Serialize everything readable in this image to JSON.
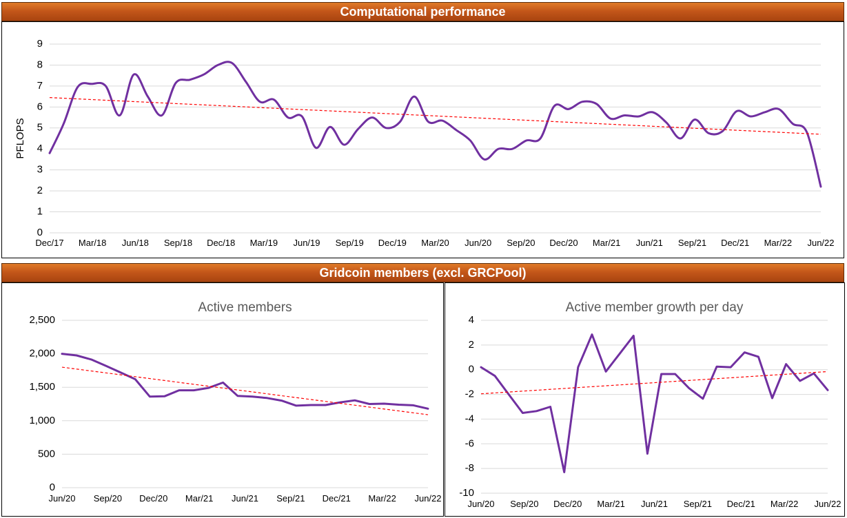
{
  "banners": {
    "top": "Computational performance",
    "bottom": "Gridcoin members (excl. GRCPool)"
  },
  "colors": {
    "series": "#7030a0",
    "trend": "#ff0000",
    "grid": "#d9d9d9",
    "banner": "#c55a11"
  },
  "chart_data": [
    {
      "type": "line",
      "title": "",
      "ylabel": "PFLOPS",
      "xlabel": "",
      "ylim": [
        0,
        9
      ],
      "yticks": [
        "0",
        "1",
        "2",
        "3",
        "4",
        "5",
        "6",
        "7",
        "8",
        "9"
      ],
      "x_tick_labels": [
        "Dec/17",
        "Mar/18",
        "Jun/18",
        "Sep/18",
        "Dec/18",
        "Mar/19",
        "Jun/19",
        "Sep/19",
        "Dec/19",
        "Mar/20",
        "Jun/20",
        "Sep/20",
        "Dec/20",
        "Mar/21",
        "Jun/21",
        "Sep/21",
        "Dec/21",
        "Mar/22",
        "Jun/22"
      ],
      "smooth": true,
      "grid": true,
      "series": [
        {
          "values": [
            3.8,
            5.2,
            6.95,
            7.1,
            7.0,
            5.6,
            7.55,
            6.5,
            5.6,
            7.15,
            7.3,
            7.55,
            8.0,
            8.1,
            7.2,
            6.25,
            6.35,
            5.5,
            5.55,
            4.05,
            5.05,
            4.2,
            4.95,
            5.5,
            5.0,
            5.3,
            6.5,
            5.3,
            5.35,
            4.9,
            4.4,
            3.5,
            4.0,
            4.0,
            4.4,
            4.5,
            6.05,
            5.9,
            6.25,
            6.15,
            5.45,
            5.6,
            5.55,
            5.75,
            5.25,
            4.5,
            5.4,
            4.75,
            4.85,
            5.8,
            5.55,
            5.75,
            5.9,
            5.2,
            4.8,
            2.2
          ]
        }
      ],
      "trendline": {
        "start": 6.45,
        "end": 4.7
      }
    },
    {
      "type": "line",
      "title": "Active members",
      "ylim": [
        0,
        2500
      ],
      "yticks": [
        "0",
        "500",
        "1,000",
        "1,500",
        "2,000",
        "2,500"
      ],
      "x_tick_labels": [
        "Jun/20",
        "Sep/20",
        "Dec/20",
        "Mar/21",
        "Jun/21",
        "Sep/21",
        "Dec/21",
        "Mar/22",
        "Jun/22"
      ],
      "grid": true,
      "series": [
        {
          "values": [
            2000,
            1975,
            1915,
            1820,
            1720,
            1620,
            1360,
            1365,
            1455,
            1455,
            1490,
            1570,
            1370,
            1360,
            1340,
            1300,
            1225,
            1235,
            1235,
            1275,
            1305,
            1250,
            1255,
            1240,
            1230,
            1180
          ]
        }
      ],
      "trendline": {
        "start": 1800,
        "end": 1090
      }
    },
    {
      "type": "line",
      "title": "Active member growth per day",
      "ylim": [
        -10,
        4
      ],
      "yticks": [
        "-10",
        "-8",
        "-6",
        "-4",
        "-2",
        "0",
        "2",
        "4"
      ],
      "x_tick_labels": [
        "Jun/20",
        "Sep/20",
        "Dec/20",
        "Mar/21",
        "Jun/21",
        "Sep/21",
        "Dec/21",
        "Mar/22",
        "Jun/22"
      ],
      "grid": true,
      "series": [
        {
          "values": [
            0.2,
            -0.5,
            -2.0,
            -3.5,
            -3.35,
            -3.0,
            -8.3,
            0.2,
            2.85,
            -0.15,
            1.3,
            2.75,
            -6.8,
            -0.35,
            -0.35,
            -1.5,
            -2.35,
            0.25,
            0.2,
            1.4,
            1.05,
            -2.3,
            0.45,
            -0.9,
            -0.3,
            -1.65
          ]
        }
      ],
      "trendline": {
        "start": -1.95,
        "end": -0.15
      }
    }
  ]
}
